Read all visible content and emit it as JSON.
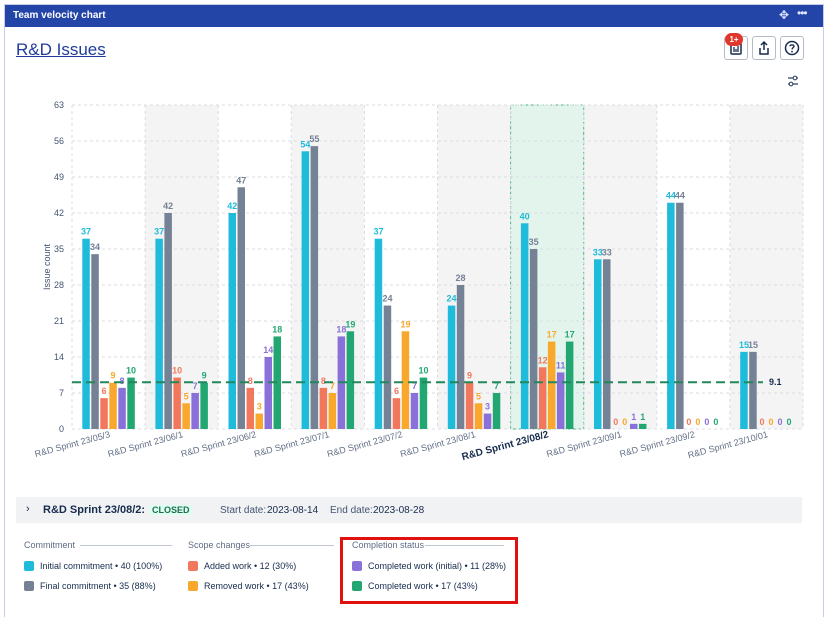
{
  "window": {
    "title": "Team velocity chart"
  },
  "header": {
    "page_title": "R&D Issues",
    "notification_badge": "1+"
  },
  "chart_data": {
    "type": "bar",
    "title": "",
    "ylabel": "Issue count",
    "ylim": [
      0,
      63
    ],
    "yticks": [
      0,
      7,
      14,
      21,
      28,
      35,
      42,
      49,
      56,
      63
    ],
    "categories": [
      "R&D Sprint 23/05/3",
      "R&D Sprint 23/06/1",
      "R&D Sprint 23/06/2",
      "R&D Sprint 23/07/1",
      "R&D Sprint 23/07/2",
      "R&D Sprint 23/08/1",
      "R&D Sprint 23/08/2",
      "R&D Sprint 23/09/1",
      "R&D Sprint 23/09/2",
      "R&D Sprint 23/10/01"
    ],
    "selected_category": "R&D Sprint 23/08/2",
    "series": [
      {
        "name": "Initial commitment",
        "color": "#1fbbdb",
        "values": [
          37,
          37,
          42,
          54,
          37,
          24,
          40,
          33,
          44,
          15
        ]
      },
      {
        "name": "Final commitment",
        "color": "#758195",
        "values": [
          34,
          42,
          47,
          55,
          24,
          28,
          35,
          33,
          44,
          15
        ]
      },
      {
        "name": "Added work",
        "color": "#f2785d",
        "values": [
          6,
          10,
          8,
          8,
          6,
          9,
          12,
          0,
          0,
          0
        ]
      },
      {
        "name": "Removed work",
        "color": "#f8a82d",
        "values": [
          9,
          5,
          3,
          7,
          19,
          5,
          17,
          0,
          0,
          0
        ]
      },
      {
        "name": "Completed work (initial)",
        "color": "#8a71d9",
        "values": [
          8,
          7,
          14,
          18,
          7,
          3,
          11,
          1,
          0,
          0
        ]
      },
      {
        "name": "Completed work",
        "color": "#23a772",
        "values": [
          10,
          9,
          18,
          19,
          10,
          7,
          17,
          1,
          0,
          0
        ]
      }
    ],
    "average_line": {
      "value": 9.1,
      "label": "9.1",
      "color": "#23875c"
    },
    "grid": true
  },
  "sprint_details": {
    "name": "R&D Sprint 23/08/2:",
    "status": "CLOSED",
    "start_label": "Start date:",
    "start_value": "2023-08-14",
    "end_label": "End date:",
    "end_value": "2023-08-28"
  },
  "legend": {
    "commitment": {
      "heading": "Commitment",
      "items": [
        {
          "label": "Initial commitment • 40 (100%)",
          "color": "#1fbbdb"
        },
        {
          "label": "Final commitment • 35 (88%)",
          "color": "#758195"
        }
      ]
    },
    "scope": {
      "heading": "Scope changes",
      "items": [
        {
          "label": "Added work • 12 (30%)",
          "color": "#f2785d"
        },
        {
          "label": "Removed work • 17 (43%)",
          "color": "#f8a82d"
        }
      ]
    },
    "completion": {
      "heading": "Completion status",
      "items": [
        {
          "label": "Completed work (initial) • 11 (28%)",
          "color": "#8a71d9"
        },
        {
          "label": "Completed work • 17 (43%)",
          "color": "#23a772"
        }
      ]
    }
  }
}
